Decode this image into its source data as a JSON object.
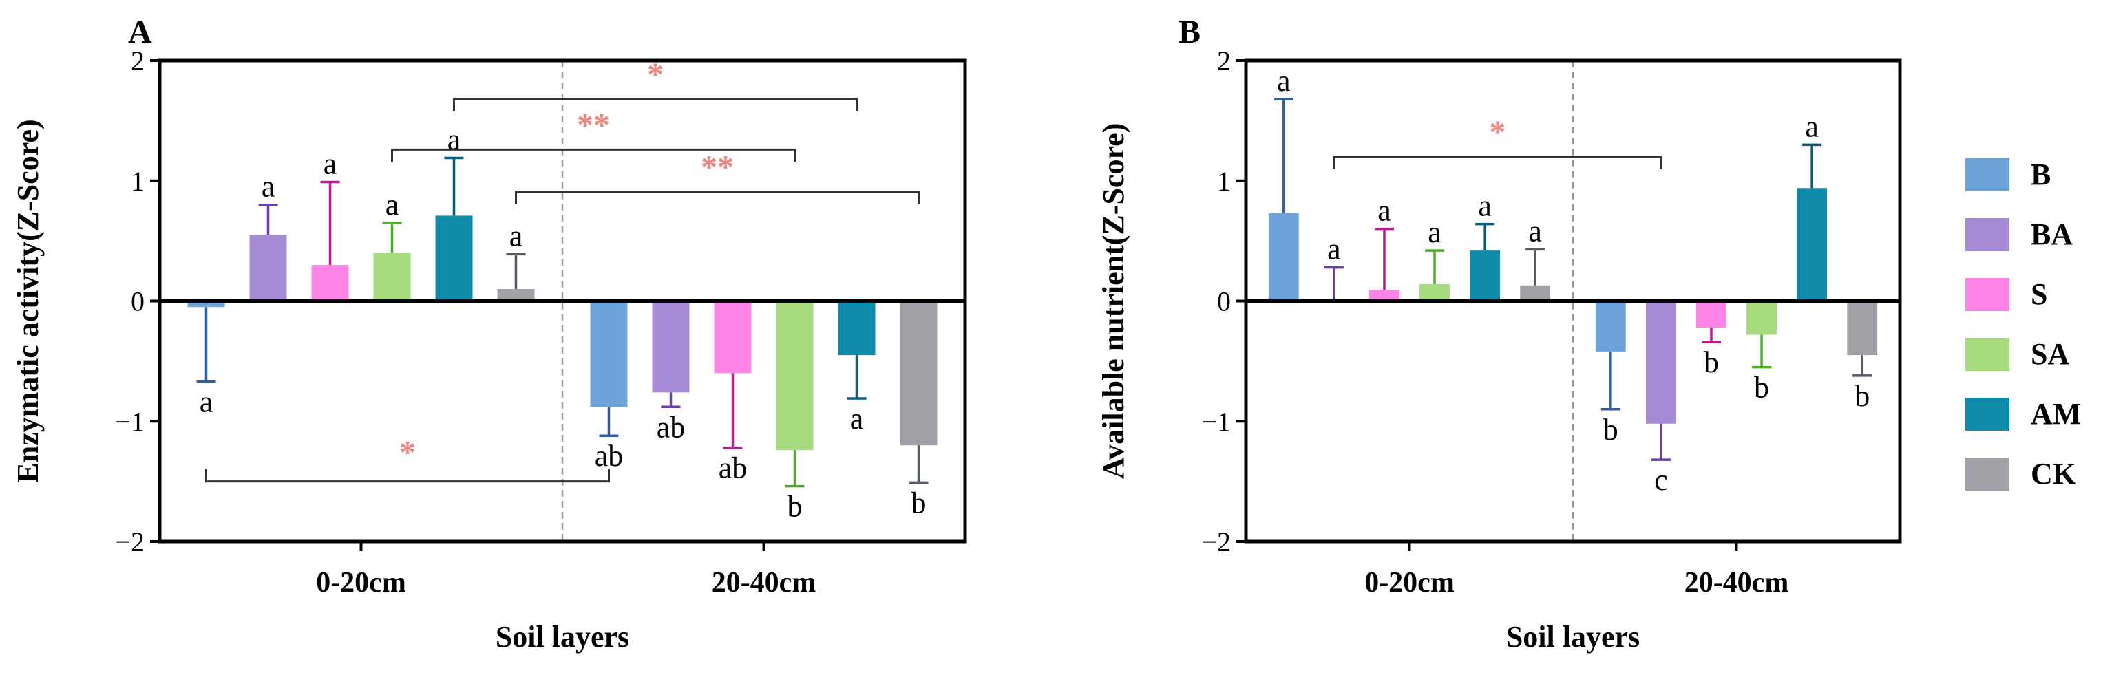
{
  "legend": [
    {
      "key": "B",
      "label": "B",
      "color": "#6ea3d9"
    },
    {
      "key": "BA",
      "label": "BA",
      "color": "#a68ad4"
    },
    {
      "key": "S",
      "label": "S",
      "color": "#fe84e5"
    },
    {
      "key": "SA",
      "label": "SA",
      "color": "#a6db7f"
    },
    {
      "key": "AM",
      "label": "AM",
      "color": "#0f8aa8"
    },
    {
      "key": "CK",
      "label": "CK",
      "color": "#a0a0a6"
    }
  ],
  "error_colors": {
    "B": "#2e5ea8",
    "BA": "#6a3fa6",
    "S": "#c6129e",
    "SA": "#4caf2a",
    "AM": "#0b5c75",
    "CK": "#555a63"
  },
  "sig_color": "#f0857d",
  "chart_data": [
    {
      "type": "bar",
      "panel": "A",
      "title": "A",
      "xlabel": "Soil layers",
      "ylabel": "Enzymatic activity(Z-Score)",
      "ylim": [
        -2,
        2
      ],
      "yticks": [
        "−2",
        "−1",
        "0",
        "1",
        "2"
      ],
      "categories": [
        "0-20cm",
        "20-40cm"
      ],
      "series": [
        {
          "name": "B",
          "values": [
            -0.05,
            -0.88
          ],
          "errors": [
            0.62,
            0.24
          ],
          "letters": [
            "a",
            "ab"
          ]
        },
        {
          "name": "BA",
          "values": [
            0.55,
            -0.76
          ],
          "errors": [
            0.25,
            0.12
          ],
          "letters": [
            "a",
            "ab"
          ]
        },
        {
          "name": "S",
          "values": [
            0.3,
            -0.6
          ],
          "errors": [
            0.69,
            0.62
          ],
          "letters": [
            "a",
            "ab"
          ]
        },
        {
          "name": "SA",
          "values": [
            0.4,
            -1.24
          ],
          "errors": [
            0.25,
            0.3
          ],
          "letters": [
            "a",
            "b"
          ]
        },
        {
          "name": "AM",
          "values": [
            0.71,
            -0.45
          ],
          "errors": [
            0.48,
            0.36
          ],
          "letters": [
            "a",
            "a"
          ]
        },
        {
          "name": "CK",
          "values": [
            0.1,
            -1.2
          ],
          "errors": [
            0.29,
            0.31
          ],
          "letters": [
            "a",
            "b"
          ]
        }
      ],
      "significance": [
        {
          "from": "AM",
          "to": "AM",
          "y": 1.68,
          "label": "*"
        },
        {
          "from": "SA",
          "to": "SA",
          "y": 1.26,
          "label": "**"
        },
        {
          "from": "CK",
          "to": "CK",
          "y": 0.91,
          "label": "**"
        },
        {
          "from": "B",
          "to": "B",
          "y": -1.5,
          "label": "*",
          "below": true
        }
      ]
    },
    {
      "type": "bar",
      "panel": "B",
      "title": "B",
      "xlabel": "Soil layers",
      "ylabel": "Available nutrient(Z-Score)",
      "ylim": [
        -2,
        2
      ],
      "yticks": [
        "−2",
        "−1",
        "0",
        "1",
        "2"
      ],
      "categories": [
        "0-20cm",
        "20-40cm"
      ],
      "series": [
        {
          "name": "B",
          "values": [
            0.73,
            -0.42
          ],
          "errors": [
            0.95,
            0.48
          ],
          "letters": [
            "a",
            "b"
          ]
        },
        {
          "name": "BA",
          "values": [
            0.0,
            -1.02
          ],
          "errors": [
            0.28,
            0.3
          ],
          "letters": [
            "a",
            "c"
          ]
        },
        {
          "name": "S",
          "values": [
            0.09,
            -0.22
          ],
          "errors": [
            0.51,
            0.12
          ],
          "letters": [
            "a",
            "b"
          ]
        },
        {
          "name": "SA",
          "values": [
            0.14,
            -0.28
          ],
          "errors": [
            0.28,
            0.27
          ],
          "letters": [
            "a",
            "b"
          ]
        },
        {
          "name": "AM",
          "values": [
            0.42,
            0.94
          ],
          "errors": [
            0.22,
            0.36
          ],
          "letters": [
            "a",
            "a"
          ]
        },
        {
          "name": "CK",
          "values": [
            0.13,
            -0.45
          ],
          "errors": [
            0.3,
            0.17
          ],
          "letters": [
            "a",
            "b"
          ]
        }
      ],
      "significance": [
        {
          "from": "BA",
          "to": "BA",
          "y": 1.2,
          "label": "*"
        }
      ]
    }
  ]
}
